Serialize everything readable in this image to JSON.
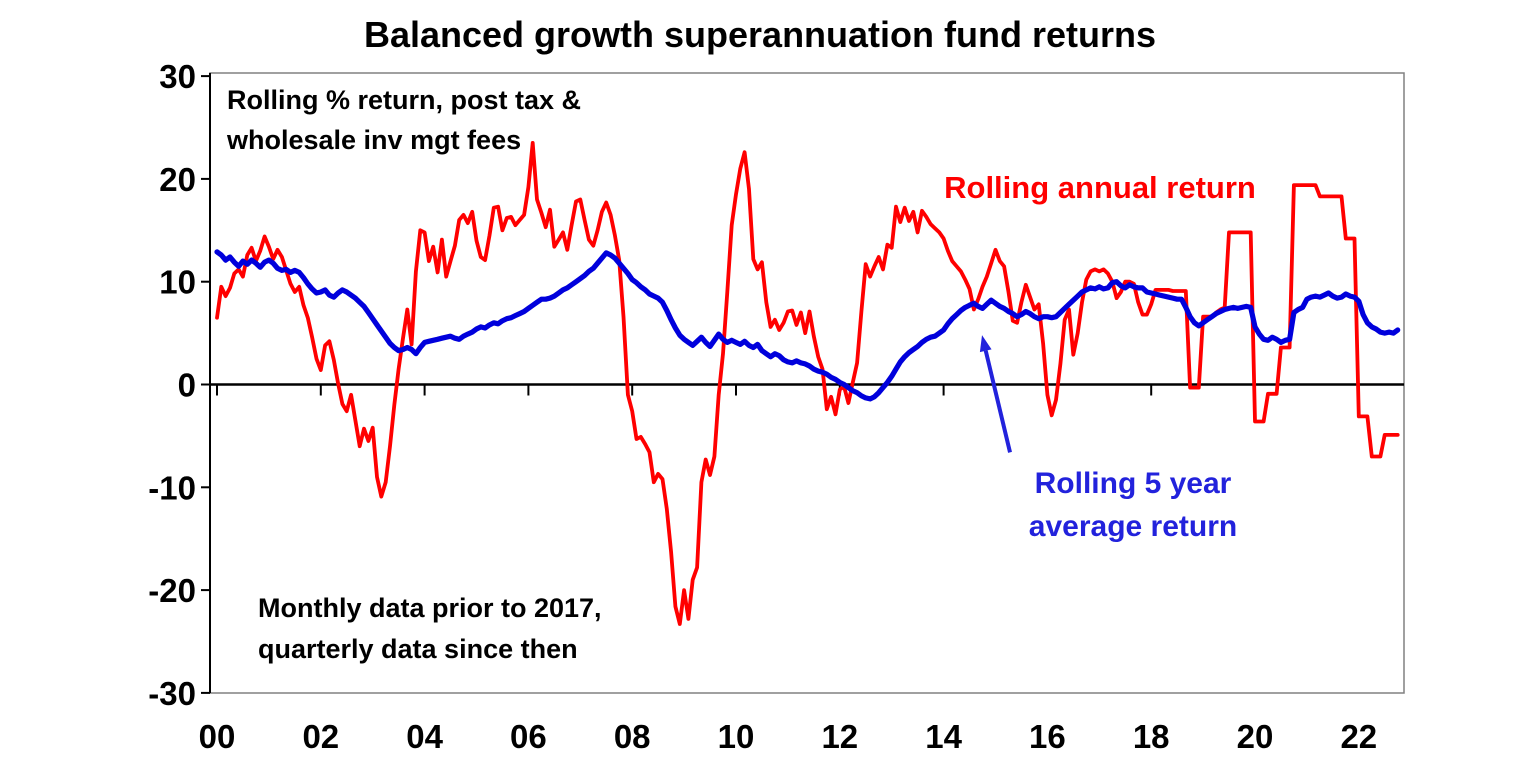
{
  "title": "Balanced growth superannuation fund returns",
  "subtitle": {
    "line1": "Rolling % return, post tax &",
    "line2": "wholesale inv mgt fees"
  },
  "note": {
    "line1": "Monthly data prior to 2017,",
    "line2": "quarterly data since then"
  },
  "series_labels": {
    "red": "Rolling annual return",
    "blue_line1": "Rolling 5 year",
    "blue_line2": "average return"
  },
  "colors": {
    "red": "#FF0000",
    "blue_line": "#0000DC",
    "blue_text": "#2222DC",
    "axis": "#000000",
    "frame": "#808080",
    "background": "#FFFFFF"
  },
  "chart_data": {
    "type": "line",
    "title": "Balanced growth superannuation fund returns",
    "xlabel": "",
    "ylabel": "Rolling % return, post tax & wholesale inv mgt fees",
    "xlim": [
      2000,
      2022.83
    ],
    "ylim": [
      -30,
      30
    ],
    "grid": false,
    "legend_position": "annotated-on-chart",
    "x_axis": {
      "tick_values": [
        2000,
        2002,
        2004,
        2006,
        2008,
        2010,
        2012,
        2014,
        2016,
        2018,
        2020,
        2022
      ],
      "tick_labels": [
        "00",
        "02",
        "04",
        "06",
        "08",
        "10",
        "12",
        "14",
        "16",
        "18",
        "20",
        "22"
      ]
    },
    "y_axis": {
      "tick_values": [
        30,
        20,
        10,
        0,
        -10,
        -20,
        -30
      ],
      "tick_labels": [
        "30",
        "20",
        "10",
        "0",
        "-10",
        "-20",
        "-30"
      ]
    },
    "x_encoding": {
      "start_year": 2000,
      "step_years": 0.0833333,
      "note": "one point per month Jan-2000 to Oct-2022; monthly data prior to 2017, quarterly since then (values held for 3 months)"
    },
    "series": [
      {
        "name": "Rolling annual return",
        "color_key": "red",
        "stroke_width": 3.8,
        "values": [
          6.5,
          9.5,
          8.6,
          9.4,
          10.8,
          11.2,
          10.5,
          12.6,
          13.3,
          12.0,
          13.0,
          14.4,
          13.4,
          12.2,
          13.1,
          12.4,
          11.1,
          9.8,
          9.0,
          9.5,
          7.7,
          6.5,
          4.6,
          2.5,
          1.4,
          3.8,
          4.2,
          2.4,
          0.1,
          -1.9,
          -2.6,
          -1.0,
          -3.5,
          -6.0,
          -4.3,
          -5.5,
          -4.2,
          -9.0,
          -10.9,
          -9.5,
          -6.0,
          -2.0,
          1.5,
          4.5,
          7.3,
          3.9,
          11.0,
          15.0,
          14.8,
          12.0,
          13.4,
          10.9,
          14.1,
          10.5,
          12.0,
          13.5,
          16.0,
          16.5,
          15.7,
          16.8,
          14.0,
          12.4,
          12.1,
          14.5,
          17.2,
          17.3,
          15.0,
          16.2,
          16.3,
          15.5,
          16.0,
          16.5,
          19.2,
          23.5,
          18.0,
          16.7,
          15.3,
          17.0,
          13.4,
          14.1,
          14.8,
          13.1,
          15.5,
          17.8,
          18.0,
          16.0,
          14.1,
          13.5,
          15.0,
          16.8,
          17.7,
          16.5,
          14.5,
          12.1,
          6.6,
          -1.0,
          -2.6,
          -5.3,
          -5.1,
          -5.8,
          -6.6,
          -9.5,
          -8.7,
          -9.2,
          -12.1,
          -16.3,
          -21.6,
          -23.3,
          -20.0,
          -22.8,
          -19.0,
          -17.8,
          -9.5,
          -7.3,
          -8.8,
          -7.0,
          -1.0,
          3.0,
          9.0,
          15.5,
          18.5,
          21.0,
          22.6,
          19.0,
          12.2,
          11.2,
          11.9,
          8.0,
          5.6,
          6.3,
          5.3,
          6.0,
          7.1,
          7.2,
          5.8,
          7.0,
          5.0,
          7.1,
          4.7,
          2.7,
          1.5,
          -2.4,
          -1.2,
          -2.9,
          -0.5,
          -0.2,
          -1.8,
          0.2,
          2.1,
          7.1,
          11.7,
          10.5,
          11.5,
          12.4,
          11.2,
          13.6,
          13.3,
          17.3,
          15.8,
          17.2,
          15.9,
          16.8,
          14.8,
          16.9,
          16.3,
          15.6,
          15.2,
          14.8,
          14.2,
          13.0,
          12.0,
          11.5,
          11.0,
          10.2,
          9.3,
          7.3,
          8.3,
          9.5,
          10.5,
          11.8,
          13.1,
          12.0,
          11.5,
          9.0,
          6.2,
          6.0,
          8.0,
          9.7,
          8.5,
          7.3,
          7.8,
          4.0,
          -1.0,
          -3.0,
          -1.5,
          2.0,
          6.3,
          7.3,
          2.9,
          5.0,
          8.0,
          10.2,
          11.0,
          11.2,
          11.0,
          11.2,
          10.8,
          10.0,
          8.4,
          9.0,
          10.0,
          10.0,
          9.8,
          8.0,
          6.8,
          6.8,
          7.8,
          9.2,
          9.2,
          9.2,
          9.2,
          9.1,
          9.1,
          9.1,
          9.1,
          -0.3,
          -0.3,
          -0.3,
          6.6,
          6.6,
          6.6,
          7.0,
          7.3,
          7.5,
          14.8,
          14.8,
          14.8,
          14.8,
          14.8,
          14.8,
          -3.6,
          -3.6,
          -3.6,
          -0.9,
          -0.9,
          -0.9,
          3.6,
          3.6,
          3.6,
          19.4,
          19.4,
          19.4,
          19.4,
          19.4,
          19.4,
          18.3,
          18.3,
          18.3,
          18.3,
          18.3,
          18.3,
          14.2,
          14.2,
          14.2,
          -3.1,
          -3.1,
          -3.1,
          -7.0,
          -7.0,
          -7.0,
          -4.9,
          -4.9,
          -4.9,
          -4.9
        ]
      },
      {
        "name": "Rolling 5 year average return",
        "color_key": "blue_line",
        "stroke_width": 5.2,
        "values": [
          12.9,
          12.6,
          12.1,
          12.4,
          11.9,
          11.5,
          12.0,
          11.7,
          12.1,
          11.8,
          11.4,
          11.9,
          12.1,
          11.8,
          11.3,
          11.1,
          11.2,
          10.9,
          11.1,
          10.9,
          10.4,
          9.8,
          9.3,
          8.9,
          9.0,
          9.2,
          8.7,
          8.5,
          8.9,
          9.2,
          9.0,
          8.7,
          8.4,
          8.0,
          7.6,
          7.0,
          6.4,
          5.8,
          5.2,
          4.6,
          4.0,
          3.6,
          3.3,
          3.4,
          3.6,
          3.4,
          3.0,
          3.6,
          4.1,
          4.2,
          4.3,
          4.4,
          4.5,
          4.6,
          4.7,
          4.5,
          4.4,
          4.7,
          4.9,
          5.1,
          5.4,
          5.6,
          5.5,
          5.8,
          6.0,
          5.9,
          6.2,
          6.4,
          6.5,
          6.7,
          6.9,
          7.1,
          7.4,
          7.7,
          8.0,
          8.3,
          8.3,
          8.4,
          8.6,
          8.9,
          9.2,
          9.4,
          9.7,
          10.0,
          10.3,
          10.6,
          11.0,
          11.3,
          11.8,
          12.3,
          12.8,
          12.6,
          12.3,
          11.8,
          11.3,
          10.8,
          10.2,
          9.9,
          9.5,
          9.2,
          8.8,
          8.6,
          8.4,
          8.0,
          7.2,
          6.3,
          5.5,
          4.8,
          4.4,
          4.1,
          3.8,
          4.2,
          4.6,
          4.1,
          3.7,
          4.3,
          4.9,
          4.4,
          4.1,
          4.3,
          4.1,
          3.9,
          4.2,
          3.8,
          3.6,
          3.9,
          3.3,
          3.0,
          2.7,
          3.0,
          2.8,
          2.4,
          2.2,
          2.1,
          2.3,
          2.1,
          2.0,
          1.8,
          1.5,
          1.3,
          1.2,
          1.0,
          0.7,
          0.5,
          0.2,
          0.0,
          -0.3,
          -0.6,
          -0.8,
          -1.1,
          -1.3,
          -1.4,
          -1.2,
          -0.8,
          -0.3,
          0.2,
          0.8,
          1.5,
          2.2,
          2.7,
          3.1,
          3.4,
          3.7,
          4.1,
          4.4,
          4.6,
          4.7,
          5.0,
          5.3,
          5.9,
          6.4,
          6.8,
          7.2,
          7.5,
          7.7,
          7.9,
          7.6,
          7.4,
          7.8,
          8.2,
          7.9,
          7.6,
          7.4,
          7.1,
          6.9,
          6.6,
          6.8,
          7.1,
          6.9,
          6.6,
          6.4,
          6.6,
          6.6,
          6.5,
          6.6,
          7.0,
          7.4,
          7.8,
          8.2,
          8.6,
          9.0,
          9.2,
          9.4,
          9.3,
          9.5,
          9.3,
          9.4,
          9.9,
          10.0,
          9.6,
          9.4,
          9.7,
          9.5,
          9.4,
          9.4,
          9.0,
          8.9,
          8.8,
          8.7,
          8.6,
          8.5,
          8.4,
          8.3,
          8.3,
          7.5,
          6.6,
          6.0,
          5.7,
          6.0,
          6.3,
          6.6,
          6.9,
          7.1,
          7.3,
          7.4,
          7.5,
          7.4,
          7.5,
          7.6,
          7.5,
          5.6,
          4.9,
          4.4,
          4.3,
          4.6,
          4.4,
          4.1,
          4.3,
          4.4,
          7.0,
          7.3,
          7.5,
          8.3,
          8.5,
          8.6,
          8.5,
          8.7,
          8.9,
          8.6,
          8.4,
          8.5,
          8.8,
          8.6,
          8.5,
          8.1,
          6.8,
          6.0,
          5.6,
          5.4,
          5.1,
          5.0,
          5.1,
          5.0,
          5.3
        ]
      }
    ],
    "annotation_arrow": {
      "points_to_series": "Rolling 5 year average return",
      "from_year": 2015.28,
      "from_value": -6.6,
      "to_year": 2014.74,
      "to_value": 4.8
    }
  }
}
